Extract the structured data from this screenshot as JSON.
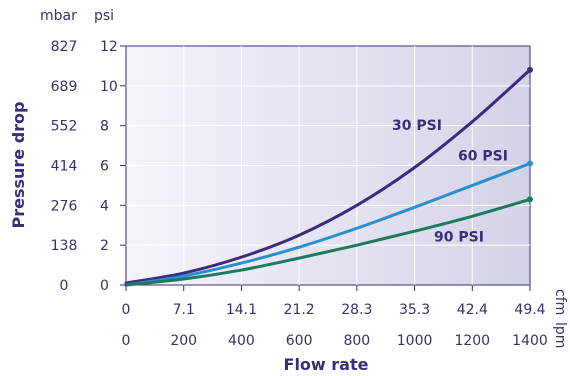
{
  "chart_data": {
    "type": "line",
    "xlabel": "Flow rate",
    "ylabel": "Pressure drop",
    "y_units": {
      "left": "mbar",
      "right": "psi"
    },
    "x_units": {
      "top": "cfm",
      "bottom": "lpm"
    },
    "x_ticks_cfm": [
      "0",
      "7.1",
      "14.1",
      "21.2",
      "28.3",
      "35.3",
      "42.4",
      "49.4"
    ],
    "x_ticks_lpm": [
      "0",
      "200",
      "400",
      "600",
      "800",
      "1000",
      "1200",
      "1400"
    ],
    "y_ticks_psi": [
      "0",
      "2",
      "4",
      "6",
      "8",
      "10",
      "12"
    ],
    "y_ticks_mbar": [
      "0",
      "138",
      "276",
      "414",
      "552",
      "689",
      "827"
    ],
    "xlim": [
      0,
      1400
    ],
    "ylim": [
      0,
      12
    ],
    "grid": true,
    "series": [
      {
        "name": "30 PSI",
        "color": "#3b2a7e",
        "x": [
          0,
          200,
          400,
          600,
          800,
          1000,
          1200,
          1400
        ],
        "values": [
          0.1,
          0.6,
          1.4,
          2.5,
          4.0,
          5.9,
          8.2,
          10.8
        ]
      },
      {
        "name": "60 PSI",
        "color": "#2a8fcc",
        "x": [
          0,
          200,
          400,
          600,
          800,
          1000,
          1200,
          1400
        ],
        "values": [
          0.0,
          0.45,
          1.1,
          1.9,
          2.85,
          3.9,
          5.0,
          6.1
        ]
      },
      {
        "name": "90 PSI",
        "color": "#1c7a5e",
        "x": [
          0,
          200,
          400,
          600,
          800,
          1000,
          1200,
          1400
        ],
        "values": [
          0.0,
          0.3,
          0.75,
          1.35,
          2.0,
          2.7,
          3.45,
          4.3
        ]
      }
    ]
  }
}
